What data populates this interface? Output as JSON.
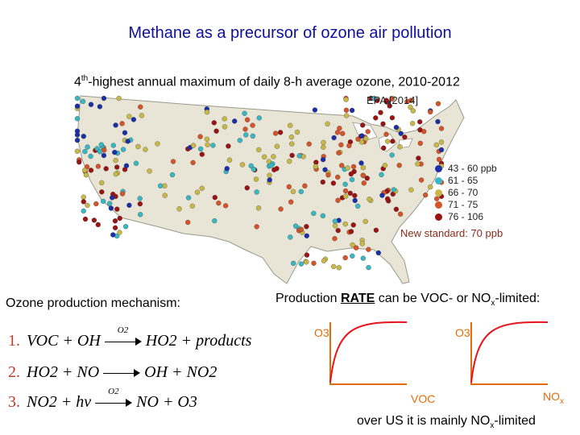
{
  "title": "Methane as a precursor of ozone air pollution",
  "subtitle": {
    "prefix": "4",
    "sup": "th",
    "rest": "-highest annual maximum of daily 8-h average ozone, 2010-2012"
  },
  "map": {
    "source": "EPA [2014]",
    "legend": [
      {
        "label": "43 - 60 ppb",
        "color": "#1a2fa8"
      },
      {
        "label": "61 - 65",
        "color": "#38b7c4"
      },
      {
        "label": "66 - 70",
        "color": "#c8b84a"
      },
      {
        "label": "71 - 75",
        "color": "#d4552a"
      },
      {
        "label": "76 - 106",
        "color": "#9b1414"
      }
    ],
    "new_standard": "New standard: 70 ppb"
  },
  "mechanism": {
    "label": "Ozone production mechanism:",
    "eq1": {
      "num": "1.",
      "lhs": "VOC + OH",
      "over": "O2",
      "rhs": "HO2 + products"
    },
    "eq2": {
      "num": "2.",
      "lhs": "HO2 + NO",
      "rhs": "OH + NO2"
    },
    "eq3": {
      "num": "3.",
      "lhs": "NO2 + hν",
      "over": "O2",
      "rhs": "NO + O3"
    }
  },
  "rate": {
    "label_prefix": "Production ",
    "label_bold": "RATE",
    "label_mid": " can be VOC- or NO",
    "label_sub": "x",
    "label_suffix": "-limited:",
    "y_axis_1": "O3",
    "y_axis_2": "O3",
    "x_axis_1": "VOC",
    "x_axis_2_main": "NO",
    "x_axis_2_sub": "x"
  },
  "footer": {
    "main": "over US it is mainly NO",
    "sub": "x",
    "suffix": "-limited"
  },
  "colors": {
    "title": "#10109a",
    "axis": "#e36c09",
    "curve": "#e8141c",
    "map_land": "#e8e5d6",
    "equation_number": "#c0392b"
  }
}
